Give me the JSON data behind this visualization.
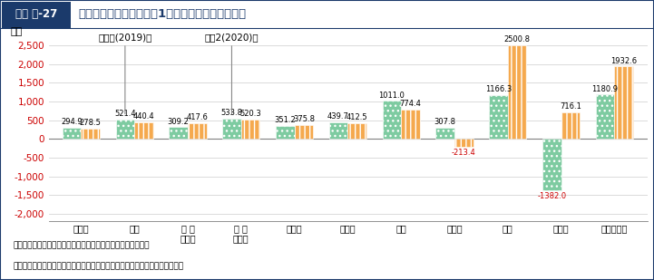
{
  "title_badge": "図表 特-27",
  "title_main": "営農類型別の主業経営体1経営体当たりの農業所得",
  "ylabel": "万円",
  "categories": [
    "水田作",
    "畑作",
    "露 地\n野菜作",
    "施 設\n野菜作",
    "果樹作",
    "花き作",
    "酪農",
    "肥育牛",
    "養豚",
    "採卵鶏",
    "ブロイラー"
  ],
  "values_2019": [
    294.9,
    521.4,
    309.2,
    533.8,
    351.2,
    439.7,
    1011.0,
    307.8,
    1166.3,
    -1382.0,
    1180.9
  ],
  "values_2020": [
    278.5,
    440.4,
    417.6,
    520.3,
    375.8,
    412.5,
    774.4,
    -213.4,
    2500.8,
    716.1,
    1932.6
  ],
  "color_2019": "#7ecba1",
  "color_2020": "#f5a94e",
  "hatch_2019": "...",
  "hatch_2020": "|||",
  "legend_label_2019": "令和元(2019)年",
  "legend_label_2020": "令和2(2020)年",
  "ylim": [
    -2200,
    2700
  ],
  "yticks": [
    -2000,
    -1500,
    -1000,
    -500,
    0,
    500,
    1000,
    1500,
    2000,
    2500
  ],
  "neg_color": "#cc0000",
  "source_text": "資料：農林水産省「農業経営統計調査　営農類型別経営統計」",
  "note_text": "　注：酪農、肥育牛、養豚、採卵鶏、ブロイラーは、全農業経営体の農業所得",
  "title_bg_color": "#1b3a6b",
  "header_label_color": "#1b3a6b",
  "bar_width": 0.35,
  "ann_fs": 6.0,
  "border_color": "#1b3a6b"
}
